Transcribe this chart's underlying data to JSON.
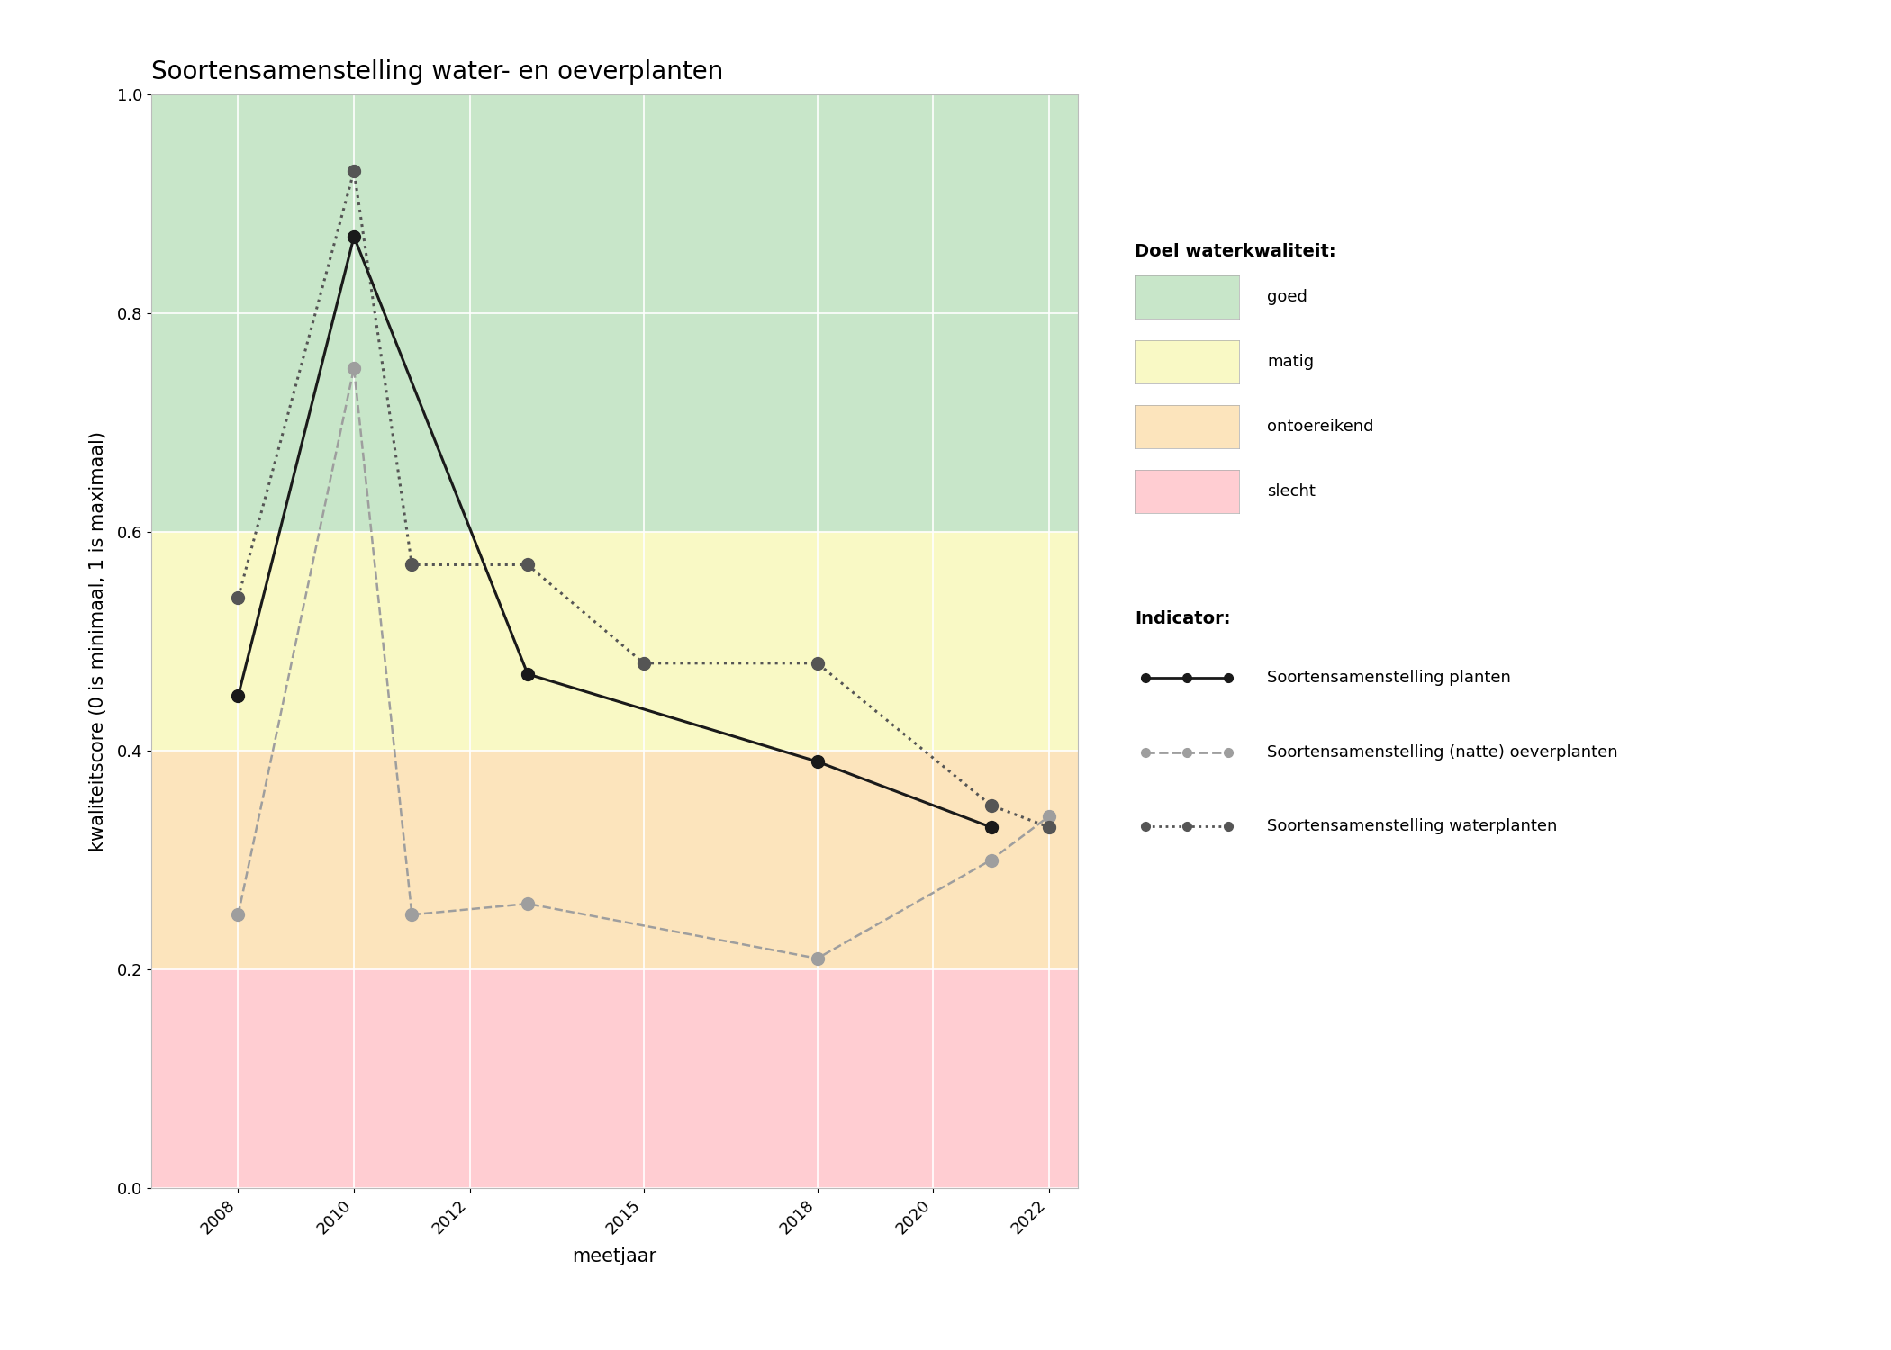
{
  "title": "Soortensamenstelling water- en oeverplanten",
  "xlabel": "meetjaar",
  "ylabel": "kwaliteitscore (0 is minimaal, 1 is maximaal)",
  "xlim": [
    2006.5,
    2022.5
  ],
  "ylim": [
    0.0,
    1.0
  ],
  "xticks": [
    2008,
    2010,
    2012,
    2015,
    2018,
    2020,
    2022
  ],
  "yticks": [
    0.0,
    0.2,
    0.4,
    0.6,
    0.8,
    1.0
  ],
  "background_color": "#ffffff",
  "plot_bg_color": "#f5f5f5",
  "quality_bands": [
    {
      "ymin": 0.6,
      "ymax": 1.0,
      "color": "#c8e6c9",
      "label": "goed"
    },
    {
      "ymin": 0.4,
      "ymax": 0.6,
      "color": "#f9f9c5",
      "label": "matig"
    },
    {
      "ymin": 0.2,
      "ymax": 0.4,
      "color": "#fce4bc",
      "label": "ontoereikend"
    },
    {
      "ymin": 0.0,
      "ymax": 0.2,
      "color": "#ffcdd2",
      "label": "slecht"
    }
  ],
  "series": [
    {
      "name": "Soortensamenstelling planten",
      "years": [
        2008,
        2010,
        2013,
        2018,
        2021
      ],
      "values": [
        0.45,
        0.87,
        0.47,
        0.39,
        0.33
      ],
      "color": "#1a1a1a",
      "linestyle": "solid",
      "linewidth": 2.2,
      "marker": "o",
      "markersize": 10,
      "zorder": 5
    },
    {
      "name": "Soortensamenstelling (natte) oeverplanten",
      "years": [
        2008,
        2010,
        2011,
        2013,
        2018,
        2021,
        2022
      ],
      "values": [
        0.25,
        0.75,
        0.25,
        0.26,
        0.21,
        0.3,
        0.34
      ],
      "color": "#9e9e9e",
      "linestyle": "dashed",
      "linewidth": 1.8,
      "marker": "o",
      "markersize": 10,
      "zorder": 4
    },
    {
      "name": "Soortensamenstelling waterplanten",
      "years": [
        2008,
        2010,
        2011,
        2013,
        2015,
        2018,
        2021,
        2022
      ],
      "values": [
        0.54,
        0.93,
        0.57,
        0.57,
        0.48,
        0.48,
        0.35,
        0.33
      ],
      "color": "#555555",
      "linestyle": "dotted",
      "linewidth": 2.2,
      "marker": "o",
      "markersize": 10,
      "zorder": 4
    }
  ],
  "legend_quality_title": "Doel waterkwaliteit:",
  "legend_indicator_title": "Indicator:",
  "legend_quality_colors": [
    "#c8e6c9",
    "#f9f9c5",
    "#fce4bc",
    "#ffcdd2"
  ],
  "legend_quality_labels": [
    "goed",
    "matig",
    "ontoereikend",
    "slecht"
  ],
  "title_fontsize": 20,
  "axis_label_fontsize": 15,
  "tick_fontsize": 13,
  "legend_fontsize": 13,
  "legend_title_fontsize": 14
}
